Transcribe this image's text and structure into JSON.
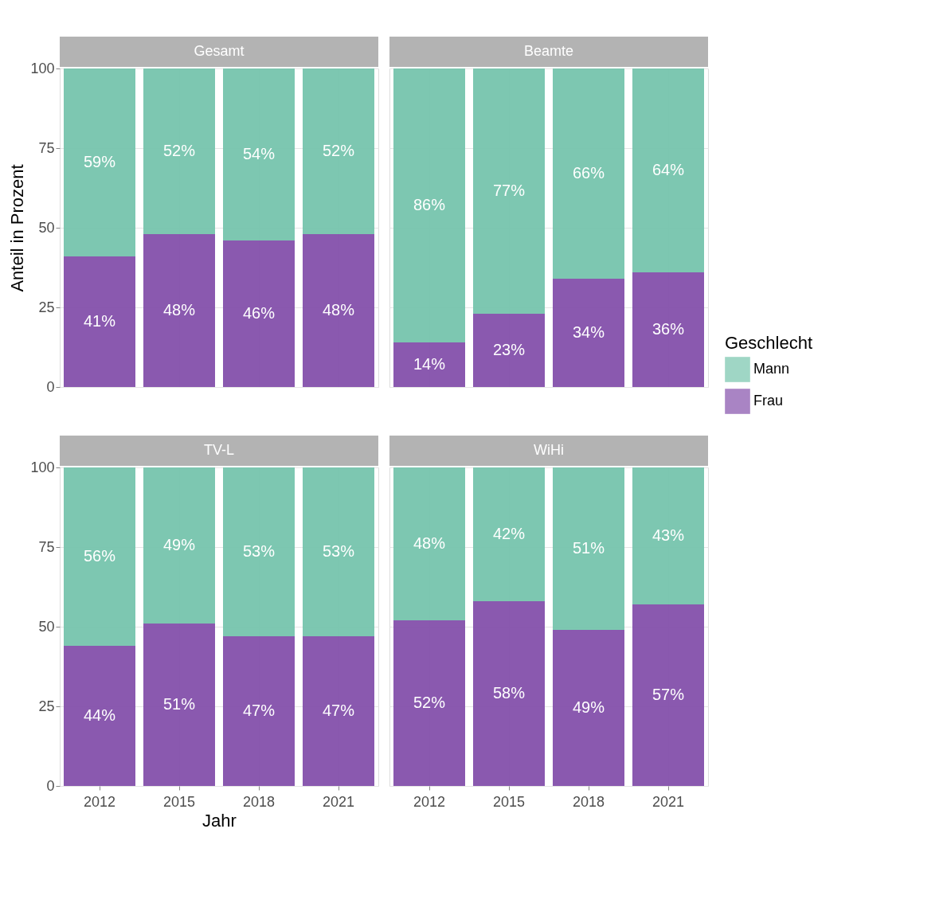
{
  "chart_data": [
    {
      "type": "bar",
      "title": "Gesamt",
      "stacked": true,
      "categories": [
        "2012",
        "2015",
        "2018",
        "2021"
      ],
      "ylabel": "Anteil in Prozent",
      "ylim": [
        0,
        100
      ],
      "yticks": [
        0,
        25,
        50,
        75,
        100
      ],
      "grid": true,
      "tick_labels": "y",
      "legend": "right",
      "legend_title": "Geschlecht",
      "series": [
        {
          "name": "Frau",
          "color": "#8450ab",
          "values": [
            41,
            48,
            46,
            48
          ],
          "value_labels": [
            "41%",
            "48%",
            "46%",
            "48%"
          ]
        },
        {
          "name": "Mann",
          "color": "#76c4ad",
          "values": [
            59,
            52,
            54,
            52
          ],
          "value_labels": [
            "59%",
            "52%",
            "54%",
            "52%"
          ]
        }
      ]
    },
    {
      "type": "bar",
      "title": "Beamte",
      "stacked": true,
      "categories": [
        "2012",
        "2015",
        "2018",
        "2021"
      ],
      "ylim": [
        0,
        100
      ],
      "yticks": [
        0,
        25,
        50,
        75,
        100
      ],
      "grid": true,
      "tick_labels": false,
      "series": [
        {
          "name": "Frau",
          "color": "#8450ab",
          "values": [
            14,
            23,
            34,
            36
          ],
          "value_labels": [
            "14%",
            "23%",
            "34%",
            "36%"
          ]
        },
        {
          "name": "Mann",
          "color": "#76c4ad",
          "values": [
            86,
            77,
            66,
            64
          ],
          "value_labels": [
            "86%",
            "77%",
            "66%",
            "64%"
          ]
        }
      ]
    },
    {
      "type": "bar",
      "title": "TV-L",
      "stacked": true,
      "categories": [
        "2012",
        "2015",
        "2018",
        "2021"
      ],
      "xlabel": "Jahr",
      "ylim": [
        0,
        100
      ],
      "yticks": [
        0,
        25,
        50,
        75,
        100
      ],
      "grid": true,
      "series": [
        {
          "name": "Frau",
          "color": "#8450ab",
          "values": [
            44,
            51,
            47,
            47
          ],
          "value_labels": [
            "44%",
            "51%",
            "47%",
            "47%"
          ]
        },
        {
          "name": "Mann",
          "color": "#76c4ad",
          "values": [
            56,
            49,
            53,
            53
          ],
          "value_labels": [
            "56%",
            "49%",
            "53%",
            "53%"
          ]
        }
      ]
    },
    {
      "type": "bar",
      "title": "WiHi",
      "stacked": true,
      "categories": [
        "2012",
        "2015",
        "2018",
        "2021"
      ],
      "ylim": [
        0,
        100
      ],
      "yticks": [
        0,
        25,
        50,
        75,
        100
      ],
      "grid": true,
      "tick_labels": "x",
      "series": [
        {
          "name": "Frau",
          "color": "#8450ab",
          "values": [
            52,
            58,
            49,
            57
          ],
          "value_labels": [
            "52%",
            "58%",
            "49%",
            "57%"
          ]
        },
        {
          "name": "Mann",
          "color": "#76c4ad",
          "values": [
            48,
            42,
            51,
            43
          ],
          "value_labels": [
            "48%",
            "42%",
            "51%",
            "43%"
          ]
        }
      ]
    }
  ]
}
